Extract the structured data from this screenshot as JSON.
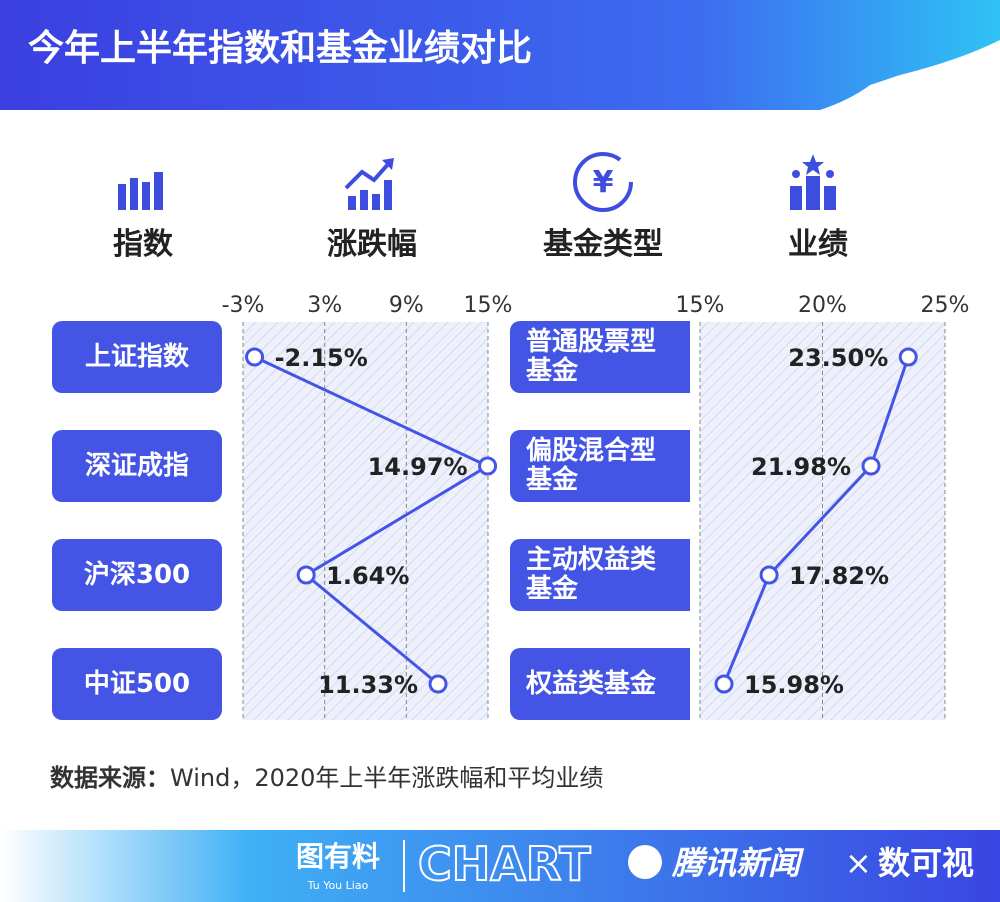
{
  "title": "今年上半年指数和基金业绩对比",
  "headers": [
    "指数",
    "涨跌幅",
    "基金类型",
    "业绩"
  ],
  "chart_data": [
    {
      "type": "line",
      "orientation": "horizontal",
      "color": "#4455e6",
      "categories": [
        "上证指数",
        "深证成指",
        "沪深300",
        "中证500"
      ],
      "values": [
        -2.15,
        14.97,
        1.64,
        11.33
      ],
      "value_labels": [
        "-2.15%",
        "14.97%",
        "1.64%",
        "11.33%"
      ],
      "xlim": [
        -3,
        15
      ],
      "xticks": [
        {
          "value": -3,
          "label": "-3%"
        },
        {
          "value": 3,
          "label": "3%"
        },
        {
          "value": 9,
          "label": "9%"
        },
        {
          "value": 15,
          "label": "15%"
        }
      ],
      "grid": true
    },
    {
      "type": "line",
      "orientation": "horizontal",
      "color": "#4455e6",
      "categories": [
        "普通股票型基金",
        "偏股混合型基金",
        "主动权益类基金",
        "权益类基金"
      ],
      "values": [
        23.5,
        21.98,
        17.82,
        15.98
      ],
      "value_labels": [
        "23.50%",
        "21.98%",
        "17.82%",
        "15.98%"
      ],
      "xlim": [
        15,
        25
      ],
      "xticks": [
        {
          "value": 15,
          "label": "15%"
        },
        {
          "value": 20,
          "label": "20%"
        },
        {
          "value": 25,
          "label": "25%"
        }
      ],
      "grid": true
    }
  ],
  "source": {
    "label": "数据来源：",
    "text": "Wind，2020年上半年涨跌幅和平均业绩"
  },
  "footer": {
    "brand": "图有料",
    "brand_pinyin": "Tu You Liao",
    "chart": "CHART",
    "news": "腾讯新闻",
    "times": "×",
    "partner": "数可视"
  }
}
